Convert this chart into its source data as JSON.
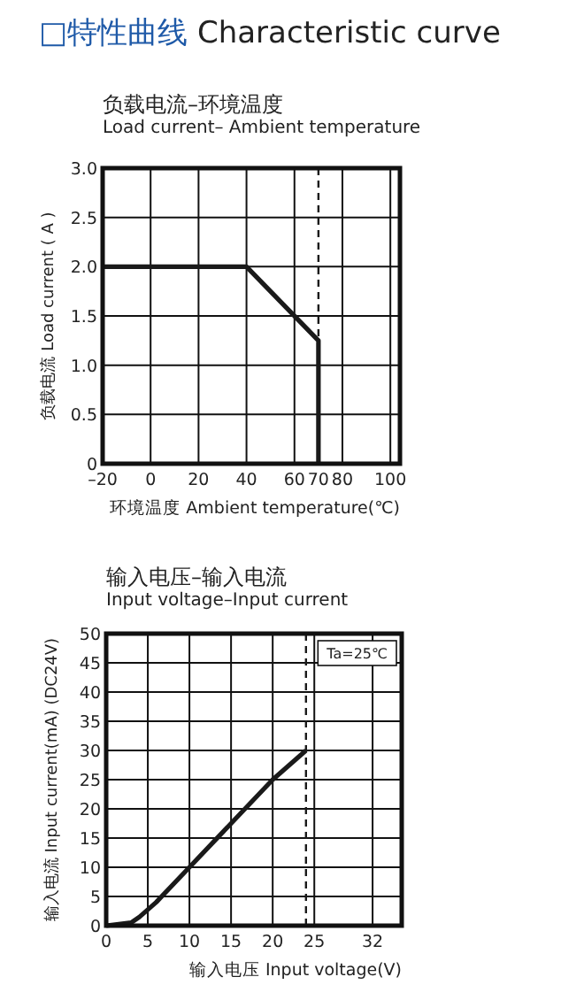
{
  "chart_data": [
    {
      "type": "line",
      "title": "负载电流–环境温度",
      "subtitle": "Load current– Ambient temperature",
      "xlabel": "环境温度 Ambient temperature(℃)",
      "ylabel": "负载电流 Load current ( A )",
      "annotations": [
        "□特性曲线 Characteristic curve"
      ],
      "x": [
        -20,
        40,
        70,
        70
      ],
      "series": [
        {
          "color": "#1a1a1a",
          "values": [
            2,
            2,
            1.25,
            0
          ]
        }
      ],
      "xlim": [
        -20,
        104
      ],
      "ylim": [
        0,
        3
      ],
      "xticks": [
        {
          "value": -20,
          "label": "–20"
        },
        0,
        20,
        40,
        60,
        70,
        80,
        100
      ],
      "yticks": [
        0,
        {
          "value": 0.5,
          "label": "0.5"
        },
        {
          "value": 1,
          "label": "1.0"
        },
        {
          "value": 1.5,
          "label": "1.5"
        },
        {
          "value": 2,
          "label": "2.0"
        },
        {
          "value": 2.5,
          "label": "2.5"
        },
        {
          "value": 3,
          "label": "3.0"
        }
      ],
      "grid": true,
      "line_style": "solid",
      "ref_lines": [
        {
          "axis": "x",
          "value": 70,
          "line_style": "dashed",
          "color": "#1a1a1a"
        }
      ]
    },
    {
      "type": "line",
      "title": "输入电压–输入电流",
      "subtitle": "Input voltage–Input current",
      "xlabel": "输入电压 Input voltage(V)",
      "ylabel": "输入电流 Input current(mA) (DC24V)",
      "annotations": [
        "Ta=25℃"
      ],
      "x": [
        0,
        3,
        4,
        6,
        10,
        15,
        20,
        24
      ],
      "series": [
        {
          "color": "#1a1a1a",
          "values": [
            0,
            0.5,
            1.5,
            4,
            10,
            17.5,
            25,
            30
          ]
        }
      ],
      "xlim": [
        0,
        35.5
      ],
      "ylim": [
        0,
        50
      ],
      "xticks": [
        0,
        5,
        10,
        15,
        20,
        25,
        32
      ],
      "yticks": [
        0,
        5,
        10,
        15,
        20,
        25,
        30,
        35,
        40,
        45,
        50
      ],
      "grid": true,
      "line_style": "solid",
      "ref_lines": [
        {
          "axis": "x",
          "value": 24,
          "line_style": "dashed",
          "color": "#1a1a1a"
        }
      ]
    }
  ]
}
